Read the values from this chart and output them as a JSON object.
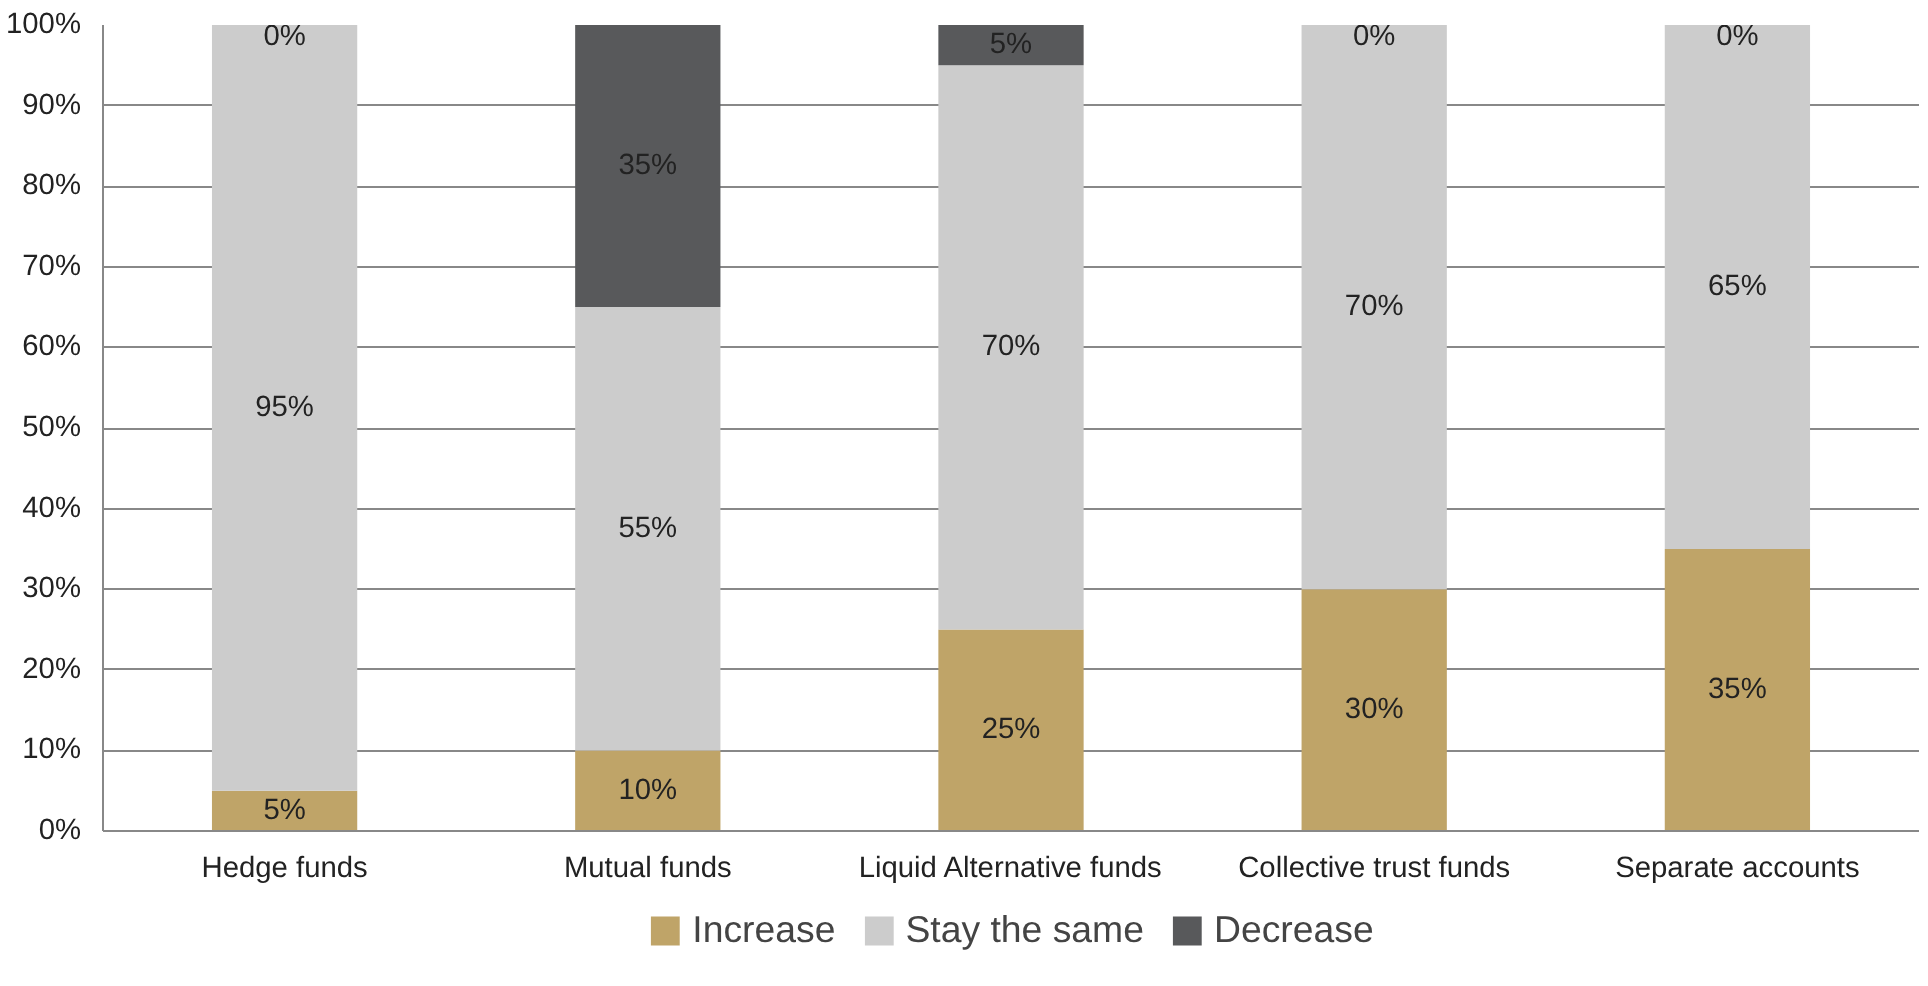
{
  "chart_data": {
    "type": "bar",
    "stacked": true,
    "categories": [
      "Hedge funds",
      "Mutual funds",
      "Liquid Alternative funds",
      "Collective trust funds",
      "Separate accounts"
    ],
    "series": [
      {
        "name": "Increase",
        "color": "#bfa468",
        "values": [
          5,
          10,
          25,
          30,
          35
        ],
        "value_labels": [
          "5%",
          "10%",
          "25%",
          "30%",
          "35%"
        ]
      },
      {
        "name": "Stay the same",
        "color": "#cccccc",
        "values": [
          95,
          55,
          70,
          70,
          65
        ],
        "value_labels": [
          "95%",
          "55%",
          "70%",
          "70%",
          "65%"
        ]
      },
      {
        "name": "Decrease",
        "color": "#58595b",
        "values": [
          0,
          35,
          5,
          0,
          0
        ],
        "value_labels": [
          "0%",
          "35%",
          "5%",
          "0%",
          "0%"
        ]
      }
    ],
    "ylim": [
      0,
      100
    ],
    "yticks": [
      {
        "value": 0,
        "label": "0%"
      },
      {
        "value": 10,
        "label": "10%"
      },
      {
        "value": 20,
        "label": "20%"
      },
      {
        "value": 30,
        "label": "30%"
      },
      {
        "value": 40,
        "label": "40%"
      },
      {
        "value": 50,
        "label": "50%"
      },
      {
        "value": 60,
        "label": "60%"
      },
      {
        "value": 70,
        "label": "70%"
      },
      {
        "value": 80,
        "label": "80%"
      },
      {
        "value": 90,
        "label": "90%"
      },
      {
        "value": 100,
        "label": "100%"
      }
    ],
    "grid": "y",
    "legend": "bottom"
  }
}
